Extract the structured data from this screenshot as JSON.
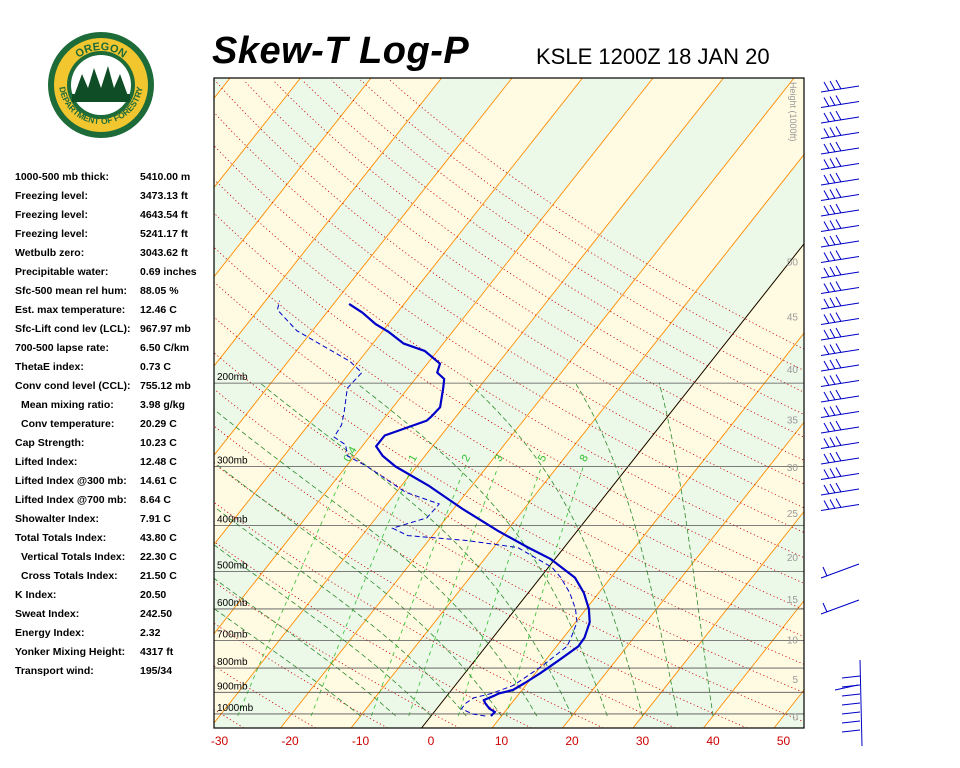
{
  "header": {
    "title": "Skew-T Log-P",
    "subtitle": "KSLE 1200Z 18 JAN 20"
  },
  "logo": {
    "top_text": "OREGON",
    "ring_text": "DEPARTMENT OF FORESTRY",
    "colors": {
      "ring": "#f2c62e",
      "field": "#1e6b3a",
      "tree": "#0f4d26",
      "sky": "#ffffff"
    }
  },
  "indices": [
    {
      "label": "1000-500 mb thick:",
      "value": "5410.00 m",
      "indent": false
    },
    {
      "label": "Freezing level:",
      "value": "3473.13 ft",
      "indent": false
    },
    {
      "label": "Freezing level:",
      "value": "4643.54 ft",
      "indent": false
    },
    {
      "label": "Freezing level:",
      "value": "5241.17 ft",
      "indent": false
    },
    {
      "label": "Wetbulb zero:",
      "value": "3043.62 ft",
      "indent": false
    },
    {
      "label": "Precipitable water:",
      "value": "0.69 inches",
      "indent": false
    },
    {
      "label": "Sfc-500 mean rel hum:",
      "value": "88.05 %",
      "indent": false
    },
    {
      "label": "Est. max temperature:",
      "value": "12.46 C",
      "indent": false
    },
    {
      "label": "Sfc-Lift cond lev (LCL):",
      "value": "967.97 mb",
      "indent": false
    },
    {
      "label": "700-500 lapse rate:",
      "value": "6.50 C/km",
      "indent": false
    },
    {
      "label": "ThetaE index:",
      "value": "0.73 C",
      "indent": false
    },
    {
      "label": "Conv cond level (CCL):",
      "value": "755.12 mb",
      "indent": false
    },
    {
      "label": "Mean mixing ratio:",
      "value": "3.98 g/kg",
      "indent": true
    },
    {
      "label": "Conv temperature:",
      "value": "20.29 C",
      "indent": true
    },
    {
      "label": "Cap Strength:",
      "value": "10.23 C",
      "indent": false
    },
    {
      "label": "Lifted Index:",
      "value": "12.48 C",
      "indent": false
    },
    {
      "label": "Lifted Index @300 mb:",
      "value": "14.61 C",
      "indent": false
    },
    {
      "label": "Lifted Index @700 mb:",
      "value": "8.64 C",
      "indent": false
    },
    {
      "label": "Showalter Index:",
      "value": "7.91 C",
      "indent": false
    },
    {
      "label": "Total Totals Index:",
      "value": "43.80 C",
      "indent": false
    },
    {
      "label": "Vertical Totals Index:",
      "value": "22.30 C",
      "indent": true
    },
    {
      "label": "Cross Totals Index:",
      "value": "21.50 C",
      "indent": true
    },
    {
      "label": "K Index:",
      "value": "20.50",
      "indent": false
    },
    {
      "label": "Sweat Index:",
      "value": "242.50",
      "indent": false
    },
    {
      "label": "Energy Index:",
      "value": "2.32",
      "indent": false
    },
    {
      "label": "Yonker Mixing Height:",
      "value": "4317 ft",
      "indent": false
    },
    {
      "label": "Transport wind:",
      "value": "195/34",
      "indent": false
    }
  ],
  "chart_data": {
    "type": "skew-t",
    "x_ticks": [
      -30,
      -20,
      -10,
      0,
      10,
      20,
      30,
      40,
      50
    ],
    "pressure_levels": [
      {
        "p": 200,
        "label": "200mb"
      },
      {
        "p": 300,
        "label": "300mb"
      },
      {
        "p": 400,
        "label": "400mb"
      },
      {
        "p": 500,
        "label": "500mb"
      },
      {
        "p": 600,
        "label": "600mb"
      },
      {
        "p": 700,
        "label": "700mb"
      },
      {
        "p": 800,
        "label": "800mb"
      },
      {
        "p": 900,
        "label": "900mb"
      },
      {
        "p": 1000,
        "label": "1000mb"
      }
    ],
    "height_axis": {
      "label": "Height (1000ft)",
      "ticks": [
        0,
        5,
        10,
        15,
        20,
        25,
        30,
        35,
        40,
        45,
        50
      ]
    },
    "mixing_ratio_labels": [
      "0.4",
      "1",
      "2",
      "3",
      "5",
      "8"
    ],
    "temperature_profile": [
      [
        1010,
        8.5
      ],
      [
        990,
        8.6
      ],
      [
        975,
        7.5
      ],
      [
        950,
        6.3
      ],
      [
        935,
        5.7
      ],
      [
        915,
        6.7
      ],
      [
        905,
        7.1
      ],
      [
        890,
        8.7
      ],
      [
        860,
        9.6
      ],
      [
        820,
        10.7
      ],
      [
        770,
        11.9
      ],
      [
        720,
        13.1
      ],
      [
        690,
        13.0
      ],
      [
        640,
        12.0
      ],
      [
        600,
        10.4
      ],
      [
        555,
        7.9
      ],
      [
        515,
        4.9
      ],
      [
        470,
        -0.7
      ],
      [
        445,
        -5.1
      ],
      [
        410,
        -11.3
      ],
      [
        370,
        -18.5
      ],
      [
        330,
        -26.0
      ],
      [
        300,
        -33.0
      ],
      [
        285,
        -36.0
      ],
      [
        272,
        -38.0
      ],
      [
        258,
        -38.0
      ],
      [
        240,
        -33.7
      ],
      [
        235,
        -33.5
      ],
      [
        225,
        -33.3
      ],
      [
        205,
        -35.0
      ],
      [
        196,
        -35.9
      ],
      [
        190,
        -37.6
      ],
      [
        182,
        -38.2
      ],
      [
        171,
        -41.8
      ],
      [
        165,
        -45.6
      ],
      [
        156,
        -49.0
      ],
      [
        150,
        -51.8
      ],
      [
        142,
        -54.9
      ],
      [
        136,
        -57.8
      ]
    ],
    "dewpoint_profile": [
      [
        1010,
        7.7
      ],
      [
        1000,
        5.7
      ],
      [
        975,
        3.5
      ],
      [
        950,
        3.5
      ],
      [
        925,
        4.0
      ],
      [
        905,
        6.1
      ],
      [
        870,
        8.3
      ],
      [
        790,
        10.2
      ],
      [
        720,
        11.5
      ],
      [
        690,
        11.1
      ],
      [
        640,
        10.2
      ],
      [
        600,
        8.5
      ],
      [
        555,
        5.9
      ],
      [
        515,
        2.9
      ],
      [
        490,
        0.5
      ],
      [
        445,
        -6.6
      ],
      [
        430,
        -14.6
      ],
      [
        420,
        -23.5
      ],
      [
        405,
        -26.5
      ],
      [
        385,
        -22.8
      ],
      [
        360,
        -22.6
      ],
      [
        340,
        -28.7
      ],
      [
        300,
        -37.0
      ],
      [
        285,
        -41.0
      ],
      [
        270,
        -42.5
      ],
      [
        260,
        -45.0
      ],
      [
        245,
        -45.3
      ],
      [
        230,
        -46.4
      ],
      [
        205,
        -48.6
      ],
      [
        190,
        -48.3
      ],
      [
        180,
        -51.2
      ],
      [
        155,
        -62.2
      ],
      [
        140,
        -67.3
      ],
      [
        134,
        -68.0
      ]
    ],
    "wind_barbs_count": 28,
    "colors": {
      "temperature": "#0000c8",
      "dewpoint": "#0000c8",
      "isotherm": "#ff8c00",
      "dry_adiabat": "#cc0000",
      "moist_adiabat": "#2e8b2e",
      "mixing_ratio": "#2fbf2f",
      "band_a": "#fffbe3",
      "band_b": "#ecf8e8",
      "frame": "#000000",
      "x_tick_labels": "#cc0000",
      "wind": "#0000c8"
    }
  }
}
